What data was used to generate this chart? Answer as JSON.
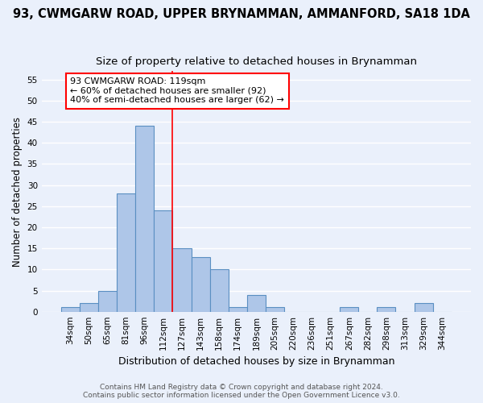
{
  "title_line1": "93, CWMGARW ROAD, UPPER BRYNAMMAN, AMMANFORD, SA18 1DA",
  "title_line2": "Size of property relative to detached houses in Brynamman",
  "xlabel": "Distribution of detached houses by size in Brynamman",
  "ylabel": "Number of detached properties",
  "categories": [
    "34sqm",
    "50sqm",
    "65sqm",
    "81sqm",
    "96sqm",
    "112sqm",
    "127sqm",
    "143sqm",
    "158sqm",
    "174sqm",
    "189sqm",
    "205sqm",
    "220sqm",
    "236sqm",
    "251sqm",
    "267sqm",
    "282sqm",
    "298sqm",
    "313sqm",
    "329sqm",
    "344sqm"
  ],
  "values": [
    1,
    2,
    5,
    28,
    44,
    24,
    15,
    13,
    10,
    1,
    4,
    1,
    0,
    0,
    0,
    1,
    0,
    1,
    0,
    2,
    0
  ],
  "bar_color": "#aec6e8",
  "bar_edgecolor": "#5a8fc2",
  "red_line_x": 5.5,
  "annotation_text": "93 CWMGARW ROAD: 119sqm\n← 60% of detached houses are smaller (92)\n40% of semi-detached houses are larger (62) →",
  "annotation_box_edgecolor": "red",
  "annotation_box_facecolor": "white",
  "ylim": [
    0,
    57
  ],
  "yticks": [
    0,
    5,
    10,
    15,
    20,
    25,
    30,
    35,
    40,
    45,
    50,
    55
  ],
  "background_color": "#eaf0fb",
  "grid_color": "white",
  "footer_line1": "Contains HM Land Registry data © Crown copyright and database right 2024.",
  "footer_line2": "Contains public sector information licensed under the Open Government Licence v3.0.",
  "title_fontsize": 10.5,
  "subtitle_fontsize": 9.5,
  "tick_fontsize": 7.5,
  "ylabel_fontsize": 8.5,
  "xlabel_fontsize": 9,
  "annotation_fontsize": 8,
  "footer_fontsize": 6.5
}
